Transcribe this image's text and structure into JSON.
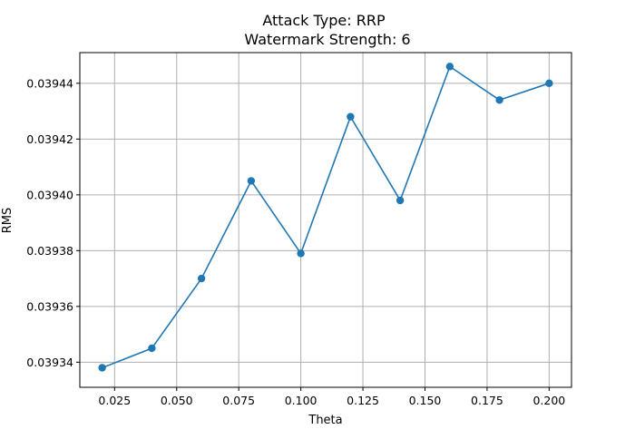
{
  "chart_data": {
    "type": "line",
    "title": "Attack Type: RRP",
    "subtitle": "Watermark Strength: 6",
    "xlabel": "Theta",
    "ylabel": "RMS",
    "x": [
      0.02,
      0.04,
      0.06,
      0.08,
      0.1,
      0.12,
      0.14,
      0.16,
      0.18,
      0.2
    ],
    "series": [
      {
        "values": [
          0.039338,
          0.039345,
          0.03937,
          0.039405,
          0.039379,
          0.039428,
          0.039398,
          0.039446,
          0.039434,
          0.03944
        ],
        "color": "#1f77b4",
        "marker": "circle"
      }
    ],
    "xlim": [
      0.011,
      0.209
    ],
    "ylim": [
      0.039331,
      0.039451
    ],
    "xticks": [
      0.025,
      0.05,
      0.075,
      0.1,
      0.125,
      0.15,
      0.175,
      0.2
    ],
    "xtick_labels": [
      "0.025",
      "0.050",
      "0.075",
      "0.100",
      "0.125",
      "0.150",
      "0.175",
      "0.200"
    ],
    "yticks": [
      0.03934,
      0.03936,
      0.03938,
      0.0394,
      0.03942,
      0.03944
    ],
    "ytick_labels": [
      "0.03934",
      "0.03936",
      "0.03938",
      "0.03940",
      "0.03942",
      "0.03944"
    ],
    "grid": true
  }
}
